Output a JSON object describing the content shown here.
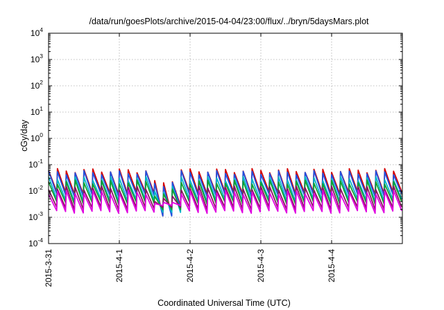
{
  "chart_data": {
    "type": "line",
    "title": "/data/run/goesPlots/archive/2015-04-04/23:00/flux/../bryn/5daysMars.plot",
    "xlabel": "Coordinated Universal Time (UTC)",
    "ylabel": "cGy/day",
    "x_range": [
      "2015-03-31T00:00",
      "2015-04-05T00:00"
    ],
    "x_ticks": [
      "2015-3-31",
      "2015-4-1",
      "2015-4-2",
      "2015-4-3",
      "2015-4-4"
    ],
    "y_scale": "log",
    "ylim": [
      0.0001,
      10000
    ],
    "y_ticks": [
      {
        "base": "10",
        "exp": "-4"
      },
      {
        "base": "10",
        "exp": "-3"
      },
      {
        "base": "10",
        "exp": "-2"
      },
      {
        "base": "10",
        "exp": "-1"
      },
      {
        "base": "10",
        "exp": "0"
      },
      {
        "base": "10",
        "exp": "1"
      },
      {
        "base": "10",
        "exp": "2"
      },
      {
        "base": "10",
        "exp": "3"
      },
      {
        "base": "10",
        "exp": "4"
      }
    ],
    "grid": true,
    "event": {
      "start": "2015-04-01T14:30",
      "end": "2015-04-01T16:00",
      "dip_min": 0.0007
    },
    "sawtooth_period_hours": 3,
    "series": [
      {
        "color": "#d40000",
        "peak": 0.06,
        "trough": 0.0085
      },
      {
        "color": "#2050e0",
        "peak": 0.05,
        "trough": 0.007
      },
      {
        "color": "#00b4c8",
        "peak": 0.03,
        "trough": 0.0045
      },
      {
        "color": "#10a030",
        "peak": 0.022,
        "trough": 0.0035
      },
      {
        "color": "#8a1060",
        "peak": 0.013,
        "trough": 0.0022
      },
      {
        "color": "#e000e0",
        "peak": 0.009,
        "trough": 0.0016
      }
    ]
  }
}
